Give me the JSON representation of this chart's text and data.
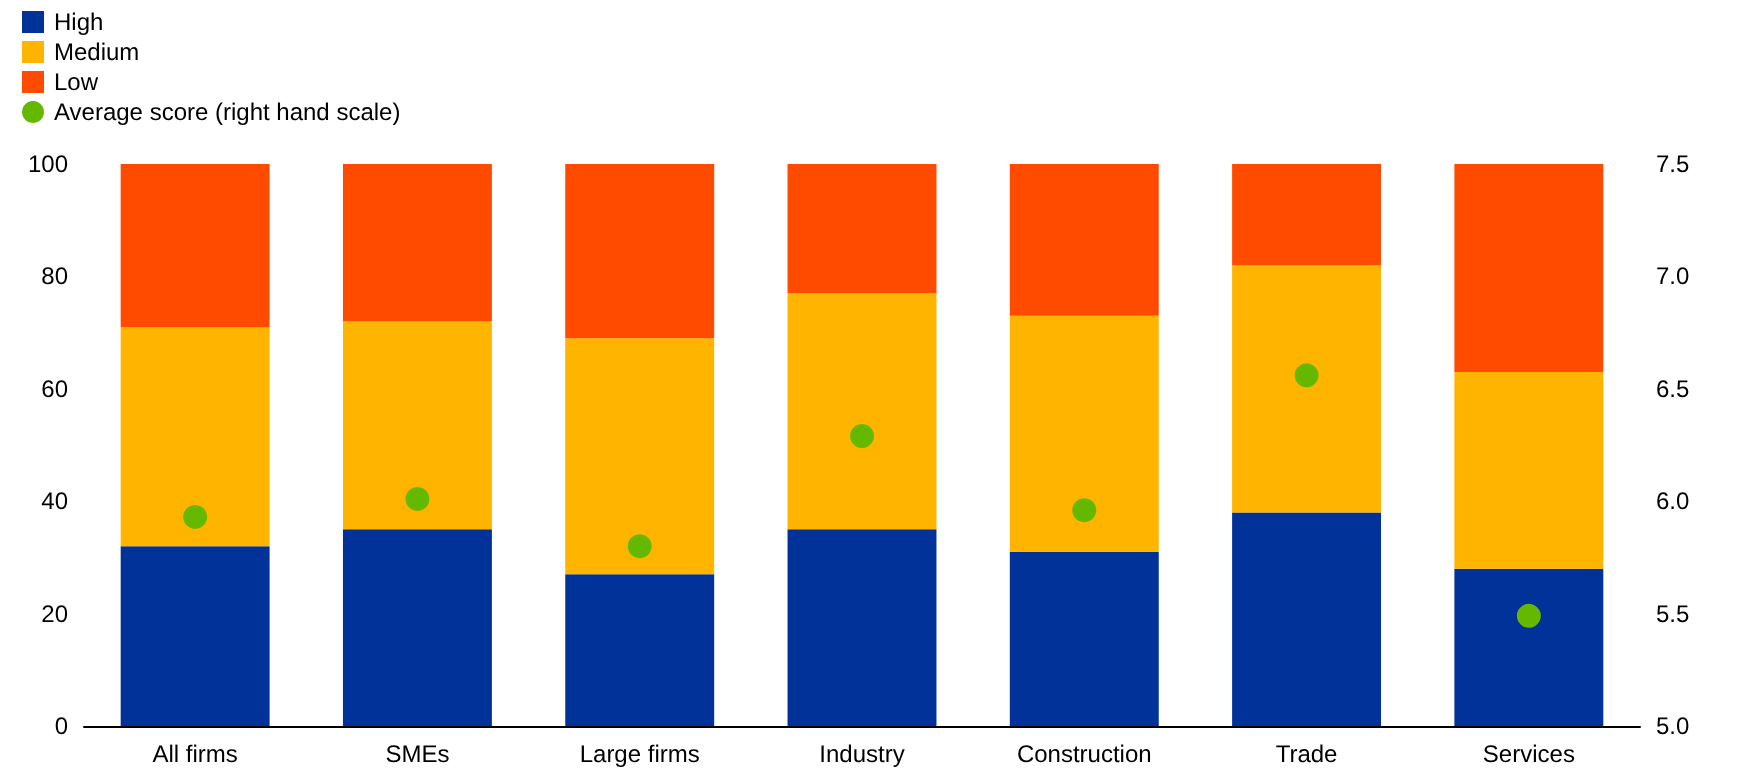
{
  "chart_data": {
    "type": "bar",
    "stacked": true,
    "categories": [
      "All firms",
      "SMEs",
      "Large firms",
      "Industry",
      "Construction",
      "Trade",
      "Services"
    ],
    "series": [
      {
        "name": "High",
        "color": "#003299",
        "values": [
          32,
          35,
          27,
          35,
          31,
          38,
          28
        ]
      },
      {
        "name": "Medium",
        "color": "#ffb400",
        "values": [
          39,
          37,
          42,
          42,
          42,
          44,
          35
        ]
      },
      {
        "name": "Low",
        "color": "#ff4b00",
        "values": [
          29,
          28,
          31,
          23,
          27,
          18,
          37
        ]
      },
      {
        "name": "Average score (right hand scale)",
        "type": "scatter",
        "axis": "y2",
        "color": "#65b800",
        "marker": "circle",
        "values": [
          5.93,
          6.01,
          5.8,
          6.29,
          5.96,
          6.56,
          5.49
        ]
      }
    ],
    "ylim": [
      0,
      100
    ],
    "yticks": [
      0,
      20,
      40,
      60,
      80,
      100
    ],
    "y2lim": [
      5,
      7.5
    ],
    "y2ticks": [
      {
        "value": 5,
        "label": "5.0"
      },
      {
        "value": 5.5,
        "label": "5.5"
      },
      {
        "value": 6,
        "label": "6.0"
      },
      {
        "value": 6.5,
        "label": "6.5"
      },
      {
        "value": 7,
        "label": "7.0"
      },
      {
        "value": 7.5,
        "label": "7.5"
      }
    ],
    "legend": "top left",
    "grid": false
  }
}
